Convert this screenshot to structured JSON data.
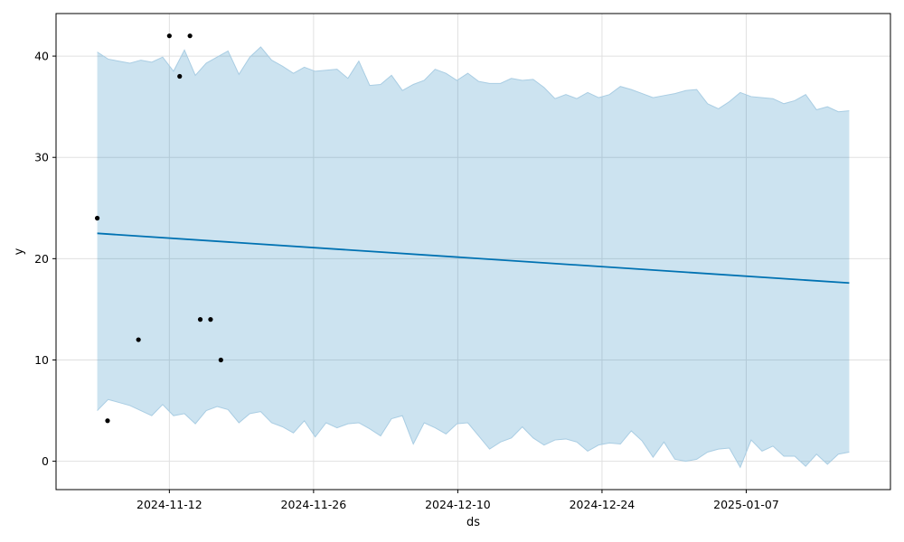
{
  "chart_data": {
    "type": "line",
    "title": "",
    "xlabel": "ds",
    "ylabel": "y",
    "x_start": "2024-11-05",
    "x_end": "2025-01-17",
    "xlim": [
      "2024-11-01",
      "2025-01-21"
    ],
    "ylim": [
      -2.8,
      44.2
    ],
    "x_ticks": [
      {
        "date": "2024-11-12",
        "label": "2024-11-12"
      },
      {
        "date": "2024-11-26",
        "label": "2024-11-26"
      },
      {
        "date": "2024-12-10",
        "label": "2024-12-10"
      },
      {
        "date": "2024-12-24",
        "label": "2024-12-24"
      },
      {
        "date": "2025-01-07",
        "label": "2025-01-07"
      }
    ],
    "y_ticks": [
      {
        "value": 0,
        "label": "0"
      },
      {
        "value": 10,
        "label": "10"
      },
      {
        "value": 20,
        "label": "20"
      },
      {
        "value": 30,
        "label": "30"
      },
      {
        "value": 40,
        "label": "40"
      }
    ],
    "grid": true,
    "observed_points": [
      {
        "x": "2024-11-05",
        "y": 24
      },
      {
        "x": "2024-11-06",
        "y": 4
      },
      {
        "x": "2024-11-09",
        "y": 12
      },
      {
        "x": "2024-11-12",
        "y": 42
      },
      {
        "x": "2024-11-13",
        "y": 38
      },
      {
        "x": "2024-11-14",
        "y": 42
      },
      {
        "x": "2024-11-15",
        "y": 14
      },
      {
        "x": "2024-11-16",
        "y": 14
      },
      {
        "x": "2024-11-17",
        "y": 10
      }
    ],
    "forecast_line": {
      "x": [
        "2024-11-05",
        "2025-01-17"
      ],
      "y": [
        22.5,
        17.6
      ]
    },
    "interval_upper": [
      40.4,
      39.7,
      39.5,
      39.3,
      39.6,
      39.4,
      39.9,
      38.5,
      40.6,
      38.1,
      39.3,
      39.9,
      40.5,
      38.2,
      39.9,
      40.9,
      39.6,
      39.0,
      38.3,
      38.9,
      38.5,
      38.6,
      38.7,
      37.8,
      39.5,
      37.1,
      37.2,
      38.1,
      36.6,
      37.2,
      37.6,
      38.7,
      38.3,
      37.6,
      38.3,
      37.5,
      37.3,
      37.3,
      37.8,
      37.6,
      37.7,
      36.9,
      35.8,
      36.2,
      35.8,
      36.4,
      35.9,
      36.2,
      37.0,
      36.7,
      36.3,
      35.9,
      36.1,
      36.3,
      36.6,
      36.7,
      35.3,
      34.8,
      35.5,
      36.4,
      36.0,
      35.9,
      35.8,
      35.3,
      35.6,
      36.2,
      34.7,
      35.0,
      34.5,
      34.6
    ],
    "interval_lower": [
      5.0,
      6.1,
      5.8,
      5.5,
      5.0,
      4.5,
      5.6,
      4.5,
      4.7,
      3.7,
      5.0,
      5.4,
      5.1,
      3.8,
      4.7,
      4.9,
      3.8,
      3.4,
      2.8,
      4.0,
      2.4,
      3.8,
      3.3,
      3.7,
      3.8,
      3.2,
      2.5,
      4.2,
      4.5,
      1.7,
      3.8,
      3.3,
      2.7,
      3.7,
      3.8,
      2.5,
      1.2,
      1.9,
      2.3,
      3.4,
      2.3,
      1.6,
      2.1,
      2.2,
      1.9,
      1.0,
      1.6,
      1.8,
      1.7,
      3.0,
      2.0,
      0.4,
      1.9,
      0.2,
      0.0,
      0.2,
      0.9,
      1.2,
      1.3,
      -0.6,
      2.1,
      1.0,
      1.5,
      0.5,
      0.5,
      -0.5,
      0.7,
      -0.3,
      0.7,
      0.9
    ],
    "colors": {
      "forecast_line": "#0072b2",
      "interval_fill": "#cde2ef",
      "interval_edge": "#a9cde3",
      "points": "#000000",
      "grid": "#e0e0e0",
      "axes": "#000000"
    }
  }
}
